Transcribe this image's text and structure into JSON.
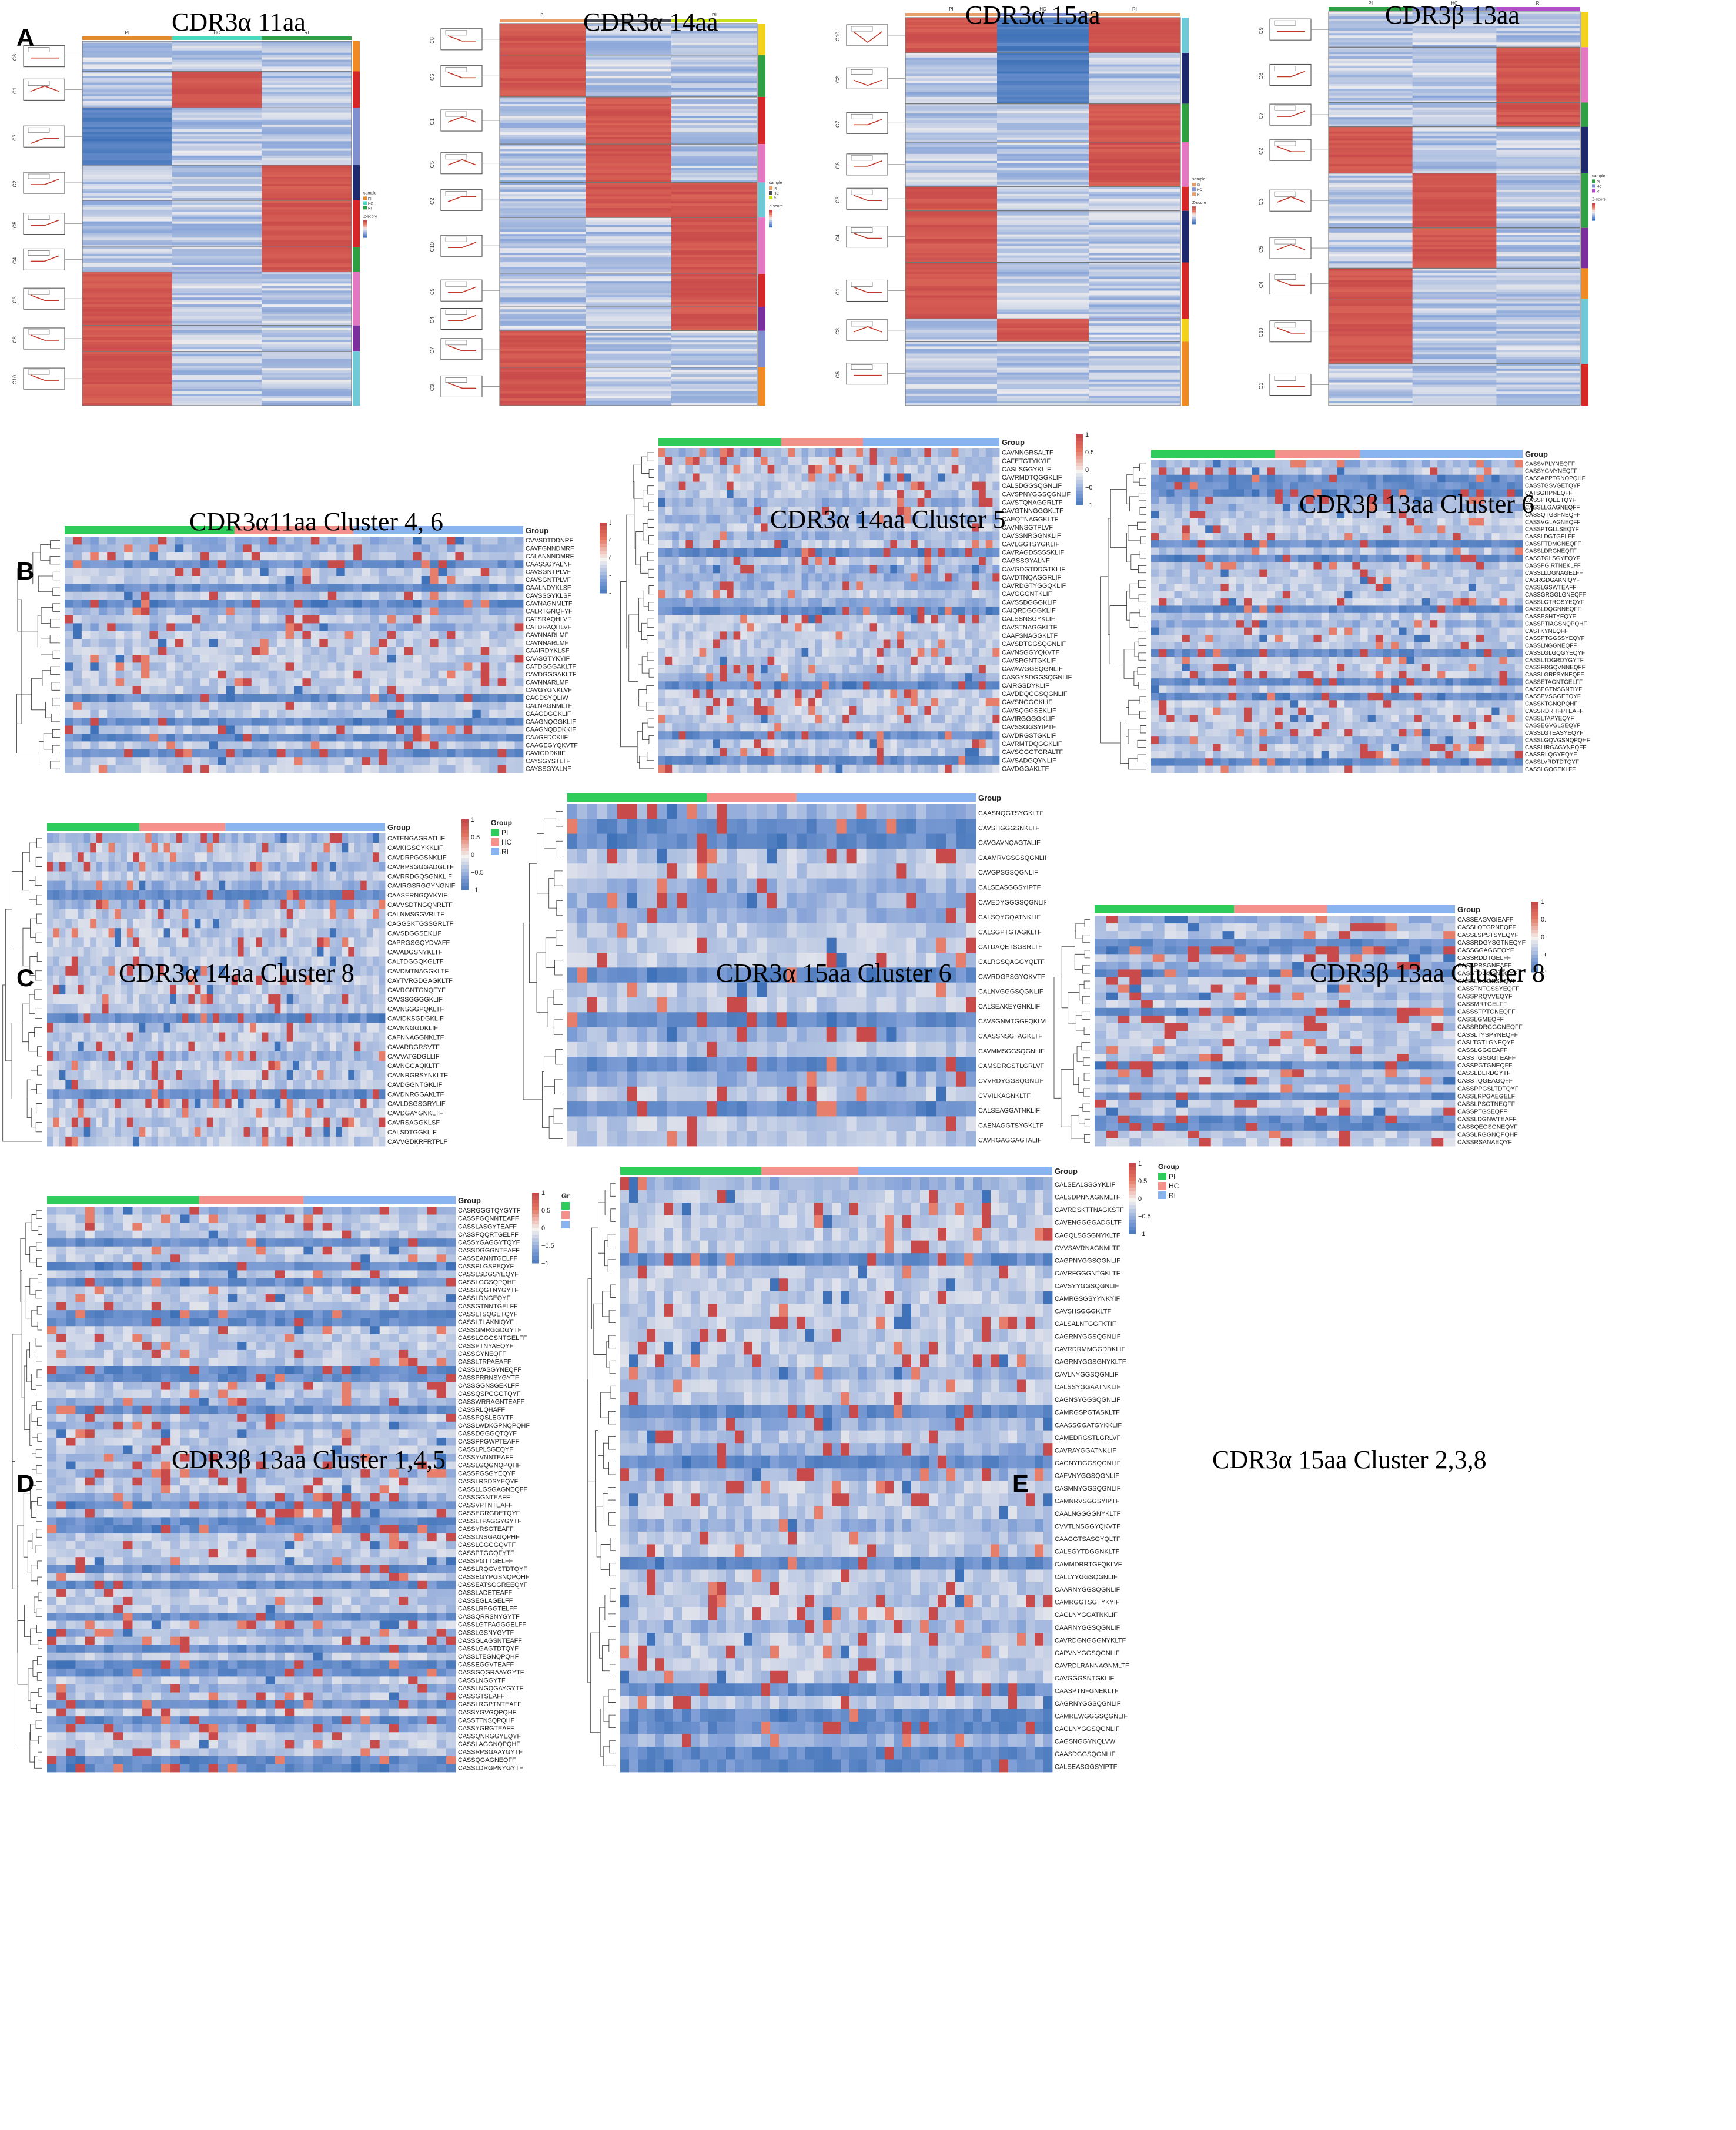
{
  "panel_letters": [
    "A",
    "B",
    "C",
    "D",
    "E"
  ],
  "group_legend": {
    "title": "Group",
    "items": [
      "PI",
      "HC",
      "RI"
    ]
  },
  "sample_legend": {
    "title": "sample",
    "items": [
      "PI",
      "HC",
      "RI"
    ]
  },
  "zscore_legend": {
    "title": "Z-score"
  },
  "colors": {
    "PI": "#2ecc5a",
    "HC": "#f3918a",
    "RI": "#8ab4f0",
    "high": "#b2182b",
    "low": "#2166ac",
    "mid": "#f7f7f7",
    "line": "#c0392b"
  },
  "panel_a_column_labels": [
    "PI",
    "HC",
    "RI"
  ],
  "chart_data": [
    {
      "panel": "A",
      "type": "heatmap",
      "title": "CDR3α 11aa",
      "columns": [
        "PI",
        "HC",
        "RI"
      ],
      "column_colors": [
        "#e08a2c",
        "#48dbc0",
        "#2ea043"
      ],
      "clusters": [
        "C6",
        "C1",
        "C7",
        "C2",
        "C5",
        "C4",
        "C3",
        "C8",
        "C10"
      ],
      "cluster_pattern": [
        [
          0,
          0,
          0
        ],
        [
          0,
          1,
          0
        ],
        [
          -1,
          0,
          0
        ],
        [
          0,
          0,
          1
        ],
        [
          0,
          0,
          1
        ],
        [
          0,
          0,
          1
        ],
        [
          1,
          0,
          0
        ],
        [
          1,
          0,
          0
        ],
        [
          1,
          0,
          0
        ]
      ],
      "cluster_bar_colors": [
        "#f08a24",
        "#d62728",
        "#7f8fd0",
        "#1f2a6e",
        "#d62728",
        "#2ea043",
        "#e377c2",
        "#7b2f9e",
        "#6fc9d6"
      ],
      "zlim": [
        -1,
        1
      ]
    },
    {
      "panel": "A",
      "type": "heatmap",
      "title": "CDR3α 14aa",
      "columns": [
        "PI",
        "HC",
        "RI"
      ],
      "column_colors": [
        "#e8a06a",
        "#4a4a52",
        "#c7e01a"
      ],
      "clusters": [
        "C8",
        "C6",
        "C1",
        "C5",
        "C2",
        "C10",
        "C9",
        "C4",
        "C7",
        "C3"
      ],
      "cluster_pattern": [
        [
          1,
          0,
          0
        ],
        [
          1,
          0,
          0
        ],
        [
          0,
          1,
          0
        ],
        [
          0,
          1,
          0
        ],
        [
          0,
          1,
          1
        ],
        [
          0,
          0,
          1
        ],
        [
          0,
          0,
          1
        ],
        [
          0,
          0,
          1
        ],
        [
          1,
          0,
          0
        ],
        [
          1,
          0,
          0
        ]
      ],
      "cluster_bar_colors": [
        "#f2d21c",
        "#2ea043",
        "#d62728",
        "#e377c2",
        "#6fc9d6",
        "#e377c2",
        "#d62728",
        "#7b2f9e",
        "#7f8fd0",
        "#f08a24"
      ],
      "zlim": [
        -1,
        1
      ]
    },
    {
      "panel": "A",
      "type": "heatmap",
      "title": "CDR3α 15aa",
      "columns": [
        "PI",
        "HC",
        "RI"
      ],
      "column_colors": [
        "#e8a06a",
        "#7f8fd0",
        "#e8a06a"
      ],
      "clusters": [
        "C10",
        "C2",
        "C7",
        "C6",
        "C3",
        "C4",
        "C1",
        "C8",
        "C5"
      ],
      "cluster_pattern": [
        [
          1,
          -1,
          1
        ],
        [
          0,
          -1,
          0
        ],
        [
          0,
          0,
          1
        ],
        [
          0,
          0,
          1
        ],
        [
          1,
          0,
          0
        ],
        [
          1,
          0,
          0
        ],
        [
          1,
          0,
          0
        ],
        [
          0,
          1,
          0
        ],
        [
          0,
          0,
          0
        ]
      ],
      "cluster_bar_colors": [
        "#6fc9d6",
        "#1f2a6e",
        "#2ea043",
        "#e377c2",
        "#d62728",
        "#1f2a6e",
        "#d62728",
        "#f2d21c",
        "#f08a24"
      ],
      "zlim": [
        -1,
        1
      ]
    },
    {
      "panel": "A",
      "type": "heatmap",
      "title": "CDR3β 13aa",
      "columns": [
        "PI",
        "HC",
        "RI"
      ],
      "column_colors": [
        "#2ea043",
        "#7f8fd0",
        "#b04fc8"
      ],
      "clusters": [
        "C9",
        "C6",
        "C7",
        "C2",
        "C3",
        "C5",
        "C4",
        "C10",
        "C1"
      ],
      "cluster_pattern": [
        [
          0,
          0,
          0
        ],
        [
          0,
          0,
          1
        ],
        [
          0,
          0,
          1
        ],
        [
          1,
          0,
          0
        ],
        [
          0,
          1,
          0
        ],
        [
          0,
          1,
          0
        ],
        [
          1,
          0,
          0
        ],
        [
          1,
          0,
          0
        ],
        [
          0,
          0,
          0
        ]
      ],
      "cluster_bar_colors": [
        "#f2d21c",
        "#e377c2",
        "#2ea043",
        "#1f2a6e",
        "#2ea043",
        "#7b2f9e",
        "#f08a24",
        "#6fc9d6",
        "#d62728"
      ],
      "zlim": [
        -1,
        1
      ]
    },
    {
      "panel": "B",
      "type": "heatmap",
      "title": "CDR3α11aa Cluster 4, 6",
      "rows": [
        "CVVSDTDDNRF",
        "CAVFGNNDMRF",
        "CALANNNDMRF",
        "CAASSGYALNF",
        "CAVSGNTPLVF",
        "CAVSGNTPLVF",
        "CAALNDYKLSF",
        "CAVSSGYKLSF",
        "CAVNAGNMLTF",
        "CALRTGNQFYF",
        "CATSRAQHLVF",
        "CATDRAQHLVF",
        "CAVNNARLMF",
        "CAVNNARLMF",
        "CAAIRDYKLSF",
        "CAASGTYKYIF",
        "CATDGGGAKLTF",
        "CAVDGGGAKLTF",
        "CAVNNARLMF",
        "CAVGYGNKLVF",
        "CAGDSYQLIW",
        "CALNAGNMLTF",
        "CAAGDGGKLIF",
        "CAAGNQGGKLIF",
        "CAAGNQDDKKIF",
        "CAAGFDCKIIF",
        "CAAGEGYQKVTF",
        "CAVIGDDKIIF",
        "CAYSGYSTLTF",
        "CAYSSGYALNF"
      ],
      "zlim": [
        -1,
        1
      ],
      "legend_ticks": [
        "1",
        "0.5",
        "0",
        "−0.5",
        "−1"
      ],
      "group_counts": [
        20,
        14,
        20
      ]
    },
    {
      "panel": "B",
      "type": "heatmap",
      "title": "CDR3α 14aa Cluster 5",
      "rows": [
        "CAVNNGRSALTF",
        "CAFETGTYKYIF",
        "CASLSGGYKLIF",
        "CAVRMDTQGGKLIF",
        "CALSDGGSQGNLIF",
        "CAVSPNYGGSQGNLIF",
        "CAVSTQNAGGRLTF",
        "CAVGTNNGGGKLTF",
        "CAEQTNAGGKLTF",
        "CAVNNSGTPLVF",
        "CAVSSNRGGNKLIF",
        "CAVLGGTSYGKLIF",
        "CAVRAGDSSSSKLIF",
        "CAGSSGYALNF",
        "CAVGDGTDDGTKLIF",
        "CAVDTNQAGGRLIF",
        "CAVRDGTYGGQKLIF",
        "CAVGGGNTKLIF",
        "CAVSSDGGGKLIF",
        "CAIQRDGGGKLIF",
        "CALSSNSGYKLIF",
        "CAVSTNAGGKLTF",
        "CAAFSNAGGKLTF",
        "CAVSDTGGSQGNLIF",
        "CAVNSGGYQKVTF",
        "CAVSRGNTGKLIF",
        "CAVAWGGSQGNLIF",
        "CASGYSDGGSQGNLIF",
        "CAIRGSDYKLIF",
        "CAVDDQGGSQGNLIF",
        "CAVSNGGGKLIF",
        "CAVSQGGSEKLIF",
        "CAVIRGGGGKLIF",
        "CAVSSGGSYIPTF",
        "CAVDRGSTGKLIF",
        "CAVRMTDQGGKLIF",
        "CAVSGGGTGRALTF",
        "CAVSADGQYNLIF",
        "CAVDGGAKLTF"
      ],
      "zlim": [
        -1,
        1
      ],
      "legend_ticks": [
        "1",
        "0.5",
        "0",
        "−0.5",
        "−1"
      ],
      "group_counts": [
        18,
        12,
        20
      ]
    },
    {
      "panel": "B",
      "type": "heatmap",
      "title": "CDR3β 13aa Cluster 6",
      "rows": [
        "CASSVPLYNEQFF",
        "CASSYGMYNEQFF",
        "CASSAPPTGNQPQHF",
        "CASSTGSVGETQYF",
        "CATSGRPNEQFF",
        "CASSPTQEETQYF",
        "CASSLLGAGNEQFF",
        "CASSQTGSFNEQFF",
        "CASSVGLAGNEQFF",
        "CASSPTGLLSEQYF",
        "CASSLDGTGELFF",
        "CASSFTDMGNEQFF",
        "CASSLDRGNEQFF",
        "CASSTGLSGYEQYF",
        "CASSPGIRTNEKLFF",
        "CASSLLDGNAGELFF",
        "CASRGDGAKNIQYF",
        "CASSLGSWTEAFF",
        "CASSGRGGLGNEQFF",
        "CASSLGTRGSYEQYF",
        "CASSLDQGNNEQFF",
        "CASSPSHTYEQYF",
        "CASSPTIAGSNQPQHF",
        "CASTKYNEQFF",
        "CASSPTGGSSYEQYF",
        "CASSLNGGNEQFF",
        "CASSLGLGQGYEQYF",
        "CASSLTDGRDYGYTF",
        "CASSFRGQVNNEQFF",
        "CASSLGRPSYNEQFF",
        "CASSETAGNTGELFF",
        "CASSPGTNSGNTIYF",
        "CASSPVSGGETQYF",
        "CASSKTGNQPQHF",
        "CASSRDRRFPTEAFF",
        "CASSLTAPYEQYF",
        "CASSEGVGLSEQYF",
        "CASSLGTEASYEQYF",
        "CASSLGQVGSNQPQHF",
        "CASSLIRGAGYNEQFF",
        "CASSRLQGYEQYF",
        "CASSLVRDTDTQYF",
        "CASSLGQGEKLFF"
      ],
      "zlim": [
        -1,
        1
      ],
      "legend_ticks": [
        "1",
        "0.5",
        "0",
        "−0.5",
        "−1"
      ],
      "group_counts": [
        16,
        11,
        21
      ]
    },
    {
      "panel": "C",
      "type": "heatmap",
      "title": "CDR3α 14aa Cluster 8",
      "rows": [
        "CATENGAGRATLIF",
        "CAVKIGSGYKKLIF",
        "CAVDRPGGSNKLIF",
        "CAVRPSGGGADGLTF",
        "CAVRRDGQSGNKLIF",
        "CAVIRGSRGGYNGNIF",
        "CAASERNGQYKYIF",
        "CAVVSDTNGQNRLTF",
        "CALNMSGGVRLTF",
        "CAGGSKTGSSGRLTF",
        "CAVSDGGSEKLIF",
        "CAPRGSGQYDVAFF",
        "CAVADGSNYKLTF",
        "CALTDGGQKGLTF",
        "CAVDMTNAGGKLTF",
        "CAYTVRGDGAGKLTF",
        "CAVRGNTGNQFYF",
        "CAVSSGGGGKLIF",
        "CAVNSGGPQKLTF",
        "CAVIDKSGDGKLIF",
        "CAVNNGGDKLIF",
        "CAFNNAGGNKLTF",
        "CAVARDGRSVTF",
        "CAVVATGDGLLIF",
        "CAVNGGAQKLTF",
        "CAVNRGRSYNKLTF",
        "CAVDGGNTGKLIF",
        "CAVDNRGGAKLTF",
        "CAVLDSGSGRYLIF",
        "CAVDGAYGNKLTF",
        "CAVRSAGGKLSF",
        "CALSDTGGKLIF",
        "CAVVGDKRFRTPLF"
      ],
      "zlim": [
        -1,
        1
      ],
      "legend_ticks": [
        "1",
        "0.5",
        "0",
        "−0.5",
        "−1"
      ],
      "group_counts": [
        15,
        14,
        26
      ]
    },
    {
      "panel": "C",
      "type": "heatmap",
      "title": "CDR3α 15aa Cluster 6",
      "rows": [
        "CAASNQGTSYGKLTF",
        "CAVSHGGGSNKLTF",
        "CAVGAVNQAGTALIF",
        "CAAMRVGSGSQGNLIF",
        "CAVGPSGSQGNLIF",
        "CALSEASGGSYIPTF",
        "CAVEDYGGGSQGNLIF",
        "CALSQYGQATNKLIF",
        "CALSGPTGTAGKLTF",
        "CATDAQETSGSRLTF",
        "CALRGSQAGGYQLTF",
        "CAVRDGPSGYQKVTF",
        "CALNVGGGSQGNLIF",
        "CALSEAKEYGNKLIF",
        "CAVSGNMTGGFQKLVF",
        "CAASSNSGTAGKLTF",
        "CAVMMSGGSQGNLIF",
        "CAMSDRGSTLGRLVF",
        "CVVRDYGGSQGNLIF",
        "CVVILKAGNKLTF",
        "CALSEAGGATNKLIF",
        "CAENAGGTSYGKLTF",
        "CAVRGAGGAGTALIF"
      ],
      "zlim": [
        -1,
        1
      ],
      "legend_ticks": [
        "1",
        "0.5",
        "0",
        "−0.5",
        "−1"
      ],
      "group_counts": [
        14,
        9,
        18
      ]
    },
    {
      "panel": "C",
      "type": "heatmap",
      "title": "CDR3β 13aa Cluster 8",
      "rows": [
        "CASSEAGVGIEAFF",
        "CASSLQTGRNEQFF",
        "CASSLSPSTSYEQYF",
        "CASSRDGYSGTNEQYF",
        "CASSGGAGGEQYF",
        "CASSRDDTGELFF",
        "CASSPRSGNEAFF",
        "CASSTDGSGNEQYF",
        "CASSLRGGSSEQYF",
        "CASSTNTGSSYEQFF",
        "CASSPRQVVEQYF",
        "CASSMRTGELFF",
        "CASSSTPTGNEQFF",
        "CASSLGMEQFF",
        "CASSRDRGGGNEQFF",
        "CASSLTYSPYNEQFF",
        "CASLTGTLGNEQYF",
        "CASSLGGGEAFF",
        "CASSTGSGGTEAFF",
        "CASSPGTGNEQFF",
        "CASSLDLRDGYTF",
        "CASSTQGEAGQFF",
        "CASSPPGSLTDTQYF",
        "CASSLRPGAEGELF",
        "CASSLPSGTNEQFF",
        "CASSPTGSEQFF",
        "CASSLDGNWTEAFF",
        "CASSQEGSGNEQYF",
        "CASSLRGGNQPQHF",
        "CASSRSANAEQYF"
      ],
      "zlim": [
        -1,
        1
      ],
      "legend_ticks": [
        "1",
        "0.5",
        "0",
        "−0.5",
        "−1"
      ],
      "group_counts": [
        12,
        8,
        11
      ]
    },
    {
      "panel": "D",
      "type": "heatmap",
      "title": "CDR3β 13aa Cluster 1,4,5",
      "rows": [
        "CASRGGGTQYGYTF",
        "CASSPGQNNTEAFF",
        "CASSLASGYTEAFF",
        "CASSPQQRTGELFF",
        "CASSYGAGGYTQYF",
        "CASSDGGGNTEAFF",
        "CASSEANNTGELFF",
        "CASSPLGSPEQYF",
        "CASSLSDGSYEQYF",
        "CASSLGGSQPQHF",
        "CASSLQGTNYGYTF",
        "CASSLDNGEQYF",
        "CASSGTNNTGELFF",
        "CASSLTSQGETQYF",
        "CASSLTLAKNIQYF",
        "CASSGMRGGDGYTF",
        "CASSLGGGSNTGELFF",
        "CASSPTNYAEQYF",
        "CASSGYNEQFF",
        "CASSLTRPAEAFF",
        "CASSLVASGYNEQFF",
        "CASSPRRNSYGYTF",
        "CASSGGNSGEKLFF",
        "CASSQSPGGGTQYF",
        "CASSWRRAGNTEAFF",
        "CASSRLQHAFF",
        "CASSPQSLEGYTF",
        "CASSLWDKGPNQPQHF",
        "CASSDGGGQTQYF",
        "CASSPPGWPTEAFF",
        "CASSLPLSGEQYF",
        "CASSYVNNTEAFF",
        "CASSLGQGNQPQHF",
        "CASSPGSGYEQYF",
        "CASSLRSDSYEQYF",
        "CASSLLGSGAGNEQFF",
        "CASSGGNTEAFF",
        "CASSVPTNTEAFF",
        "CASSEGRGDETQYF",
        "CASSLTPAGGYGYTF",
        "CASSYRSGTEAFF",
        "CASSLNSGAGQPHF",
        "CASSLGGGGQVTF",
        "CASSPTGGQFYTF",
        "CASSPGTTGELFF",
        "CASSLRQGVSTDTQYF",
        "CASSEGYPGSNQPQHF",
        "CASSEATSGGREEQYF",
        "CASSLADETEAFF",
        "CASSEGLAGELFF",
        "CASSLRPGGTELFF",
        "CASSQRRSNYGYTF",
        "CASSLGTPAGGGELFF",
        "CASSLGSNYGYTF",
        "CASSGLAGSNTEAFF",
        "CASSLGAGTDTQYF",
        "CASSLTEGNQPQHF",
        "CASSEGGVTEAFF",
        "CASSGQGRAAYGYTF",
        "CASSLNGGYTF",
        "CASSLNGQGAYGYTF",
        "CASSGTSEAFF",
        "CASSLRGPTNTEAFF",
        "CASSYGVGQPQHF",
        "CASSTTNSQPQHF",
        "CASSYGRGTEAFF",
        "CASSQNRGGYEQYF",
        "CASSLAGGNQPQHF",
        "CASSRPSGAAYGYTF",
        "CASSQGAGNEQFF",
        "CASSLDRGPNYGYTF"
      ],
      "zlim": [
        -1,
        1
      ],
      "legend_ticks": [
        "1",
        "0.5",
        "0",
        "−0.5",
        "−1"
      ],
      "group_counts": [
        16,
        11,
        16
      ]
    },
    {
      "panel": "E",
      "type": "heatmap",
      "title": "CDR3α 15aa Cluster 2,3,8",
      "rows": [
        "CALSEALSSGYKLIF",
        "CALSDPNNAGNMLTF",
        "CAVRDSKTTNAGKSTF",
        "CAVENGGGGADGLTF",
        "CAGQLSGSGNYKLTF",
        "CVVSAVRNAGNMLTF",
        "CAGPNYGGSQGNLIF",
        "CAVRFGGGNTGKLTF",
        "CAVSYYGGSQGNLIF",
        "CAMRGSGSYYNKYIF",
        "CAVSHSGGGKLTF",
        "CALSALNTGGFKTIF",
        "CAGRNYGGSQGNLIF",
        "CAVRDRMMGGDDKLIF",
        "CAGRNYGGSGNYKLTF",
        "CAVLNYGGSQGNLIF",
        "CALSSYGGAATNKLIF",
        "CAGNSYGGSQGNLIF",
        "CAMRGSPGTASKLTF",
        "CAASSGGATGYKKLIF",
        "CAMEDRGSTLGRLVF",
        "CAVRAYGGATNKLIF",
        "CAGNYDGGSQGNLIF",
        "CAFVNYGGSQGNLIF",
        "CASMNYGGSQGNLIF",
        "CAMNRVSGGSYIPTF",
        "CAALNGGGGNYKLTF",
        "CVVTLNSGGYQKVTF",
        "CAAGGTSASGYQLTF",
        "CALSGYTDGGNKLTF",
        "CAMMDRRTGFQKLVF",
        "CALLYYGGSQGNLIF",
        "CAARNYGGSQGNLIF",
        "CAMRGGTSGTYKYIF",
        "CAGLNYGGATNKLIF",
        "CAARNYGGSQGNLIF",
        "CAVRDGNGGGNYKLTF",
        "CAPVNYGGSQGNLIF",
        "CAVRDLRANNAGNMLTF",
        "CAVGGGSNTGKLIF",
        "CAASPTNFGNEKLTF",
        "CAGRNYGGSQGNLIF",
        "CAMREWGGGSQGNLIF",
        "CAGLNYGGSQGNLIF",
        "CAGSNGGYNQLVW",
        "CAASDGGSQGNLIF",
        "CALSEASGGSYIPTF"
      ],
      "zlim": [
        -1,
        1
      ],
      "legend_ticks": [
        "1",
        "0.5",
        "0",
        "−0.5",
        "−1"
      ],
      "group_counts": [
        16,
        11,
        22
      ]
    }
  ]
}
